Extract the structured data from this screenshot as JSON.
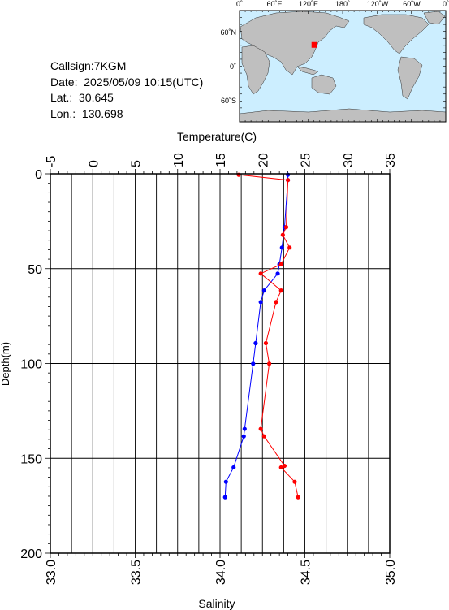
{
  "info": {
    "callsign": "Callsign:7KGM",
    "date": "Date:  2025/05/09 10:15(UTC)",
    "lat": "Lat.:  30.645",
    "lon": "Lon.:  130.698"
  },
  "map": {
    "lon_labels": [
      "0˚",
      "60˚E",
      "120˚E",
      "180˚",
      "120˚W",
      "60˚W",
      "0˚"
    ],
    "lat_labels": [
      "60˚N",
      "0˚",
      "60˚S"
    ],
    "ocean_color": "#cceeff",
    "land_color": "#bfbfbf",
    "marker_color": "#ff0000",
    "station": {
      "lat": 30.645,
      "lon": 130.698
    }
  },
  "chart_data": {
    "type": "line",
    "top_axis": {
      "label": "Temperature(C)",
      "range": [
        -5,
        35
      ],
      "ticks": [
        -5,
        0,
        5,
        10,
        15,
        20,
        25,
        30,
        35
      ]
    },
    "bottom_axis": {
      "label": "Salinity",
      "range": [
        33.0,
        35.0
      ],
      "ticks": [
        "33.0",
        "33.5",
        "34.0",
        "34.5",
        "35.0"
      ]
    },
    "left_axis": {
      "label": "Depth(m)",
      "range": [
        0,
        200
      ],
      "inverted": true,
      "ticks": [
        0,
        50,
        100,
        150,
        200
      ]
    },
    "grid": true,
    "series": [
      {
        "color": "#0000ff",
        "axis": "top",
        "points": [
          [
            23.0,
            0.5
          ],
          [
            23.0,
            3.3
          ],
          [
            22.6,
            28.1
          ],
          [
            22.3,
            38.9
          ],
          [
            22.0,
            47.7
          ],
          [
            21.8,
            52.6
          ],
          [
            20.2,
            61.5
          ],
          [
            19.8,
            67.6
          ],
          [
            19.2,
            89.3
          ],
          [
            18.9,
            100.1
          ],
          [
            17.9,
            134.5
          ],
          [
            17.8,
            138.4
          ],
          [
            16.6,
            154.8
          ],
          [
            15.7,
            162.4
          ],
          [
            15.6,
            170.5
          ]
        ]
      },
      {
        "color": "#ff0000",
        "axis": "bottom",
        "points": [
          [
            34.11,
            0.5
          ],
          [
            34.4,
            3.3
          ],
          [
            34.39,
            28.1
          ],
          [
            34.37,
            32.2
          ],
          [
            34.41,
            38.9
          ],
          [
            34.36,
            47.7
          ],
          [
            34.24,
            52.6
          ],
          [
            34.36,
            61.5
          ],
          [
            34.33,
            67.6
          ],
          [
            34.27,
            89.3
          ],
          [
            34.29,
            100.1
          ],
          [
            34.24,
            134.5
          ],
          [
            34.26,
            138.4
          ],
          [
            34.38,
            154.0
          ],
          [
            34.36,
            154.8
          ],
          [
            34.44,
            162.4
          ],
          [
            34.46,
            170.5
          ]
        ]
      }
    ]
  }
}
